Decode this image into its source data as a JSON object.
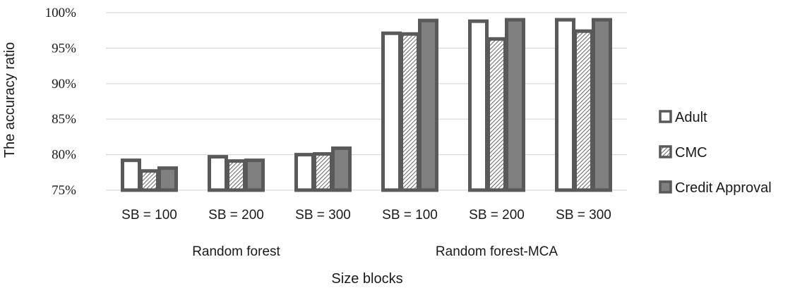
{
  "chart_data": {
    "type": "bar",
    "title": "",
    "xlabel": "Size blocks",
    "ylabel": "The accuracy ratio",
    "ylim": [
      75,
      100
    ],
    "yticks": [
      "75%",
      "80%",
      "85%",
      "90%",
      "95%",
      "100%"
    ],
    "ytick_values": [
      75,
      80,
      85,
      90,
      95,
      100
    ],
    "grid": true,
    "legend_position": "right",
    "groups": [
      {
        "name": "Random forest",
        "categories": [
          "SB = 100",
          "SB = 200",
          "SB = 300"
        ]
      },
      {
        "name": "Random forest-MCA",
        "categories": [
          "SB = 100",
          "SB = 200",
          "SB = 300"
        ]
      }
    ],
    "series": [
      {
        "name": "Adult",
        "pattern": "white",
        "values": [
          79.2,
          79.7,
          80.0,
          97.1,
          98.8,
          99.0
        ]
      },
      {
        "name": "CMC",
        "pattern": "hatch",
        "values": [
          77.7,
          79.1,
          80.1,
          97.0,
          96.3,
          97.4
        ]
      },
      {
        "name": "Credit Approval",
        "pattern": "gray",
        "values": [
          78.1,
          79.2,
          80.9,
          98.9,
          99.0,
          99.0
        ]
      }
    ],
    "colors": {
      "outline": "#595959",
      "fill_gray": "#808080",
      "fill_white": "#ffffff",
      "grid": "#d9d9d9"
    }
  }
}
